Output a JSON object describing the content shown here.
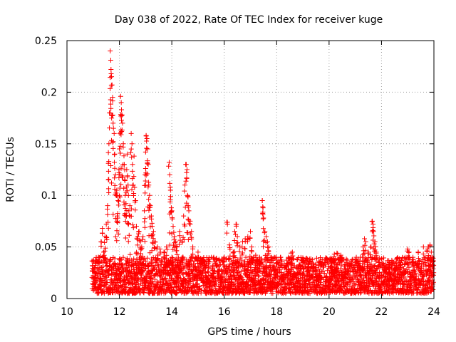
{
  "chart_data": {
    "type": "scatter",
    "title": "Day 038 of 2022, Rate Of TEC Index for receiver kuge",
    "xlabel": "GPS time / hours",
    "ylabel": "ROTI / TECUs",
    "xlim": [
      10,
      24
    ],
    "ylim": [
      0,
      0.25
    ],
    "x_ticks": [
      10,
      12,
      14,
      16,
      18,
      20,
      22,
      24
    ],
    "x_tick_labels": [
      "10",
      "12",
      "14",
      "16",
      "18",
      "20",
      "22",
      "24"
    ],
    "y_ticks": [
      0,
      0.05,
      0.1,
      0.15,
      0.2,
      0.25
    ],
    "y_tick_labels": [
      "0",
      "0.05",
      "0.1",
      "0.15",
      "0.2",
      "0.25"
    ],
    "grid": true,
    "marker": "+",
    "color": "#ff0000",
    "baseline": {
      "x_range": [
        10.95,
        24.0
      ],
      "typical_range": [
        0.005,
        0.04
      ]
    },
    "series": [
      {
        "name": "ROTI",
        "points": [
          [
            11.05,
            0.03
          ],
          [
            11.1,
            0.025
          ],
          [
            11.2,
            0.04
          ],
          [
            11.3,
            0.055
          ],
          [
            11.35,
            0.068
          ],
          [
            11.4,
            0.045
          ],
          [
            11.45,
            0.06
          ],
          [
            11.5,
            0.072
          ],
          [
            11.55,
            0.09
          ],
          [
            11.58,
            0.131
          ],
          [
            11.6,
            0.15
          ],
          [
            11.62,
            0.18
          ],
          [
            11.65,
            0.24
          ],
          [
            11.67,
            0.231
          ],
          [
            11.68,
            0.222
          ],
          [
            11.7,
            0.215
          ],
          [
            11.72,
            0.207
          ],
          [
            11.74,
            0.195
          ],
          [
            11.76,
            0.17
          ],
          [
            11.8,
            0.16
          ],
          [
            11.82,
            0.14
          ],
          [
            11.85,
            0.12
          ],
          [
            11.88,
            0.1
          ],
          [
            11.9,
            0.105
          ],
          [
            11.92,
            0.08
          ],
          [
            11.95,
            0.095
          ],
          [
            11.98,
            0.125
          ],
          [
            12.0,
            0.145
          ],
          [
            12.02,
            0.16
          ],
          [
            12.05,
            0.196
          ],
          [
            12.07,
            0.19
          ],
          [
            12.08,
            0.183
          ],
          [
            12.1,
            0.178
          ],
          [
            12.12,
            0.17
          ],
          [
            12.15,
            0.15
          ],
          [
            12.18,
            0.13
          ],
          [
            12.2,
            0.115
          ],
          [
            12.22,
            0.1
          ],
          [
            12.25,
            0.092
          ],
          [
            12.28,
            0.125
          ],
          [
            12.3,
            0.14
          ],
          [
            12.33,
            0.11
          ],
          [
            12.36,
            0.085
          ],
          [
            12.4,
            0.09
          ],
          [
            12.45,
            0.16
          ],
          [
            12.48,
            0.15
          ],
          [
            12.5,
            0.13
          ],
          [
            12.53,
            0.11
          ],
          [
            12.56,
            0.138
          ],
          [
            12.6,
            0.095
          ],
          [
            12.65,
            0.07
          ],
          [
            12.7,
            0.06
          ],
          [
            12.75,
            0.065
          ],
          [
            12.8,
            0.055
          ],
          [
            12.85,
            0.05
          ],
          [
            12.9,
            0.06
          ],
          [
            12.95,
            0.085
          ],
          [
            12.98,
            0.12
          ],
          [
            13.0,
            0.142
          ],
          [
            13.02,
            0.158
          ],
          [
            13.05,
            0.155
          ],
          [
            13.08,
            0.145
          ],
          [
            13.1,
            0.13
          ],
          [
            13.12,
            0.11
          ],
          [
            13.15,
            0.1
          ],
          [
            13.18,
            0.09
          ],
          [
            13.22,
            0.08
          ],
          [
            13.25,
            0.07
          ],
          [
            13.3,
            0.065
          ],
          [
            13.35,
            0.055
          ],
          [
            13.45,
            0.05
          ],
          [
            13.55,
            0.048
          ],
          [
            13.7,
            0.045
          ],
          [
            13.8,
            0.05
          ],
          [
            13.9,
            0.132
          ],
          [
            13.92,
            0.12
          ],
          [
            13.95,
            0.105
          ],
          [
            13.98,
            0.088
          ],
          [
            14.0,
            0.085
          ],
          [
            14.05,
            0.07
          ],
          [
            14.1,
            0.06
          ],
          [
            14.15,
            0.055
          ],
          [
            14.2,
            0.05
          ],
          [
            14.3,
            0.065
          ],
          [
            14.4,
            0.055
          ],
          [
            14.45,
            0.08
          ],
          [
            14.5,
            0.11
          ],
          [
            14.55,
            0.13
          ],
          [
            14.58,
            0.125
          ],
          [
            14.6,
            0.1
          ],
          [
            14.62,
            0.09
          ],
          [
            14.65,
            0.085
          ],
          [
            14.7,
            0.075
          ],
          [
            14.75,
            0.065
          ],
          [
            14.8,
            0.05
          ],
          [
            14.9,
            0.04
          ],
          [
            15.0,
            0.045
          ],
          [
            15.2,
            0.038
          ],
          [
            15.4,
            0.036
          ],
          [
            15.6,
            0.04
          ],
          [
            15.8,
            0.038
          ],
          [
            16.0,
            0.04
          ],
          [
            16.1,
            0.074
          ],
          [
            16.2,
            0.052
          ],
          [
            16.35,
            0.045
          ],
          [
            16.4,
            0.065
          ],
          [
            16.45,
            0.072
          ],
          [
            16.5,
            0.06
          ],
          [
            16.6,
            0.05
          ],
          [
            16.7,
            0.055
          ],
          [
            16.8,
            0.058
          ],
          [
            16.9,
            0.06
          ],
          [
            17.0,
            0.065
          ],
          [
            17.05,
            0.05
          ],
          [
            17.2,
            0.042
          ],
          [
            17.35,
            0.04
          ],
          [
            17.45,
            0.095
          ],
          [
            17.48,
            0.088
          ],
          [
            17.5,
            0.078
          ],
          [
            17.55,
            0.065
          ],
          [
            17.6,
            0.06
          ],
          [
            17.65,
            0.055
          ],
          [
            17.7,
            0.05
          ],
          [
            17.8,
            0.04
          ],
          [
            18.0,
            0.038
          ],
          [
            18.2,
            0.036
          ],
          [
            18.45,
            0.04
          ],
          [
            18.55,
            0.044
          ],
          [
            18.6,
            0.045
          ],
          [
            18.8,
            0.038
          ],
          [
            19.0,
            0.035
          ],
          [
            19.2,
            0.034
          ],
          [
            19.5,
            0.033
          ],
          [
            19.8,
            0.032
          ],
          [
            20.1,
            0.034
          ],
          [
            20.2,
            0.043
          ],
          [
            20.3,
            0.044
          ],
          [
            20.45,
            0.042
          ],
          [
            20.6,
            0.033
          ],
          [
            20.8,
            0.032
          ],
          [
            21.0,
            0.035
          ],
          [
            21.2,
            0.04
          ],
          [
            21.3,
            0.05
          ],
          [
            21.35,
            0.058
          ],
          [
            21.4,
            0.055
          ],
          [
            21.5,
            0.045
          ],
          [
            21.6,
            0.05
          ],
          [
            21.65,
            0.075
          ],
          [
            21.68,
            0.072
          ],
          [
            21.7,
            0.065
          ],
          [
            21.75,
            0.055
          ],
          [
            21.8,
            0.045
          ],
          [
            21.9,
            0.035
          ],
          [
            22.1,
            0.032
          ],
          [
            22.3,
            0.03
          ],
          [
            22.5,
            0.032
          ],
          [
            22.7,
            0.035
          ],
          [
            22.9,
            0.04
          ],
          [
            23.0,
            0.048
          ],
          [
            23.05,
            0.045
          ],
          [
            23.2,
            0.04
          ],
          [
            23.4,
            0.045
          ],
          [
            23.6,
            0.05
          ],
          [
            23.75,
            0.048
          ],
          [
            23.8,
            0.05
          ],
          [
            23.85,
            0.052
          ],
          [
            23.9,
            0.045
          ],
          [
            23.95,
            0.04
          ]
        ]
      }
    ]
  }
}
